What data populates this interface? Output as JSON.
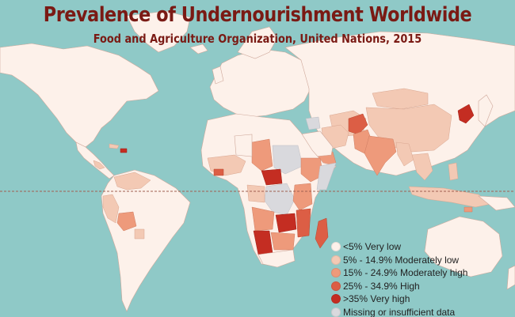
{
  "title": "Prevalence of Undernourishment Worldwide",
  "subtitle": "Food and Agriculture Organization, United Nations, 2015",
  "colors": {
    "ocean": "#8fc9c7",
    "very_low": "#fdf1ea",
    "moderately_low": "#f3c9b4",
    "moderately_high": "#ee9a7b",
    "high": "#dc5e45",
    "very_high": "#c42d22",
    "missing": "#d9d9dd",
    "title": "#7a1a14"
  },
  "legend": [
    {
      "label": "<5% Very low",
      "color": "#fdf1ea"
    },
    {
      "label": "5% - 14.9% Moderately low",
      "color": "#f3c9b4"
    },
    {
      "label": "15% - 24.9% Moderately high",
      "color": "#ee9a7b"
    },
    {
      "label": "25% - 34.9% High",
      "color": "#dc5e45"
    },
    {
      "label": ">35% Very high",
      "color": "#c42d22"
    },
    {
      "label": "Missing or insufficient data",
      "color": "#d9d9dd"
    }
  ]
}
